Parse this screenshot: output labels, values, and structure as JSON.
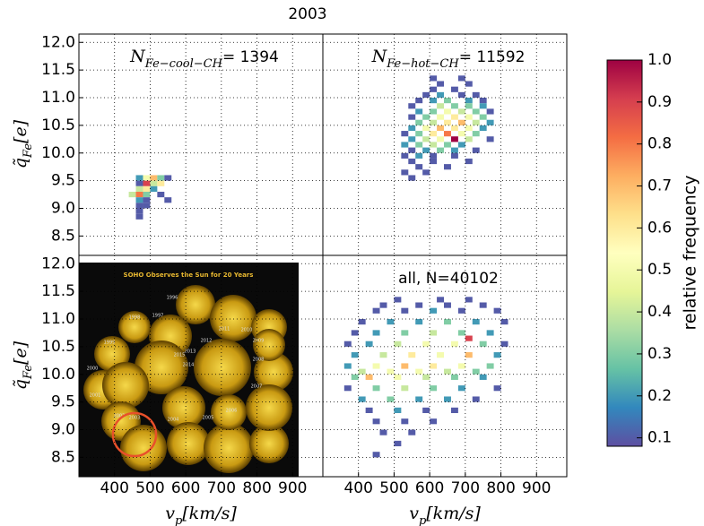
{
  "chart_data": {
    "type": "heatmap",
    "title": "2003",
    "xlabel": {
      "symbol": "v",
      "subscript": "p",
      "suffix": "[km/s]"
    },
    "ylabel": {
      "symbol": "q̃",
      "subscript": "Fe",
      "suffix": "[e]"
    },
    "xlim": [
      300,
      985
    ],
    "xticks": [
      400,
      500,
      600,
      700,
      800,
      900
    ],
    "ylim": [
      8.15,
      12.15
    ],
    "yticks": [
      {
        "value": 8.5,
        "label": "8.5"
      },
      {
        "value": 9,
        "label": "9.0"
      },
      {
        "value": 9.5,
        "label": "9.5"
      },
      {
        "value": 10,
        "label": "10.0"
      },
      {
        "value": 10.5,
        "label": "10.5"
      },
      {
        "value": 11,
        "label": "11.0"
      },
      {
        "value": 11.5,
        "label": "11.5"
      },
      {
        "value": 12,
        "label": "12.0"
      }
    ],
    "grid": true,
    "bin_size": [
      20,
      0.1
    ],
    "colormap": [
      "#5e4fa2",
      "#3288bd",
      "#66c2a5",
      "#abdda4",
      "#e6f598",
      "#ffffbf",
      "#fee08b",
      "#fdae61",
      "#f46d43",
      "#d53e4f",
      "#9e0142"
    ],
    "colorbar": {
      "label": "relative frequency",
      "lim": [
        0.08,
        1.0
      ],
      "ticks": [
        0.1,
        0.2,
        0.3,
        0.4,
        0.5,
        0.6,
        0.7,
        0.8,
        0.9,
        {
          "value": 1,
          "label": "1.0"
        }
      ]
    },
    "panels": [
      {
        "annotation": {
          "symbol": "N",
          "subscript": "Fe−cool−CH",
          "text": "= 1394"
        },
        "rows": [
          {
            "y": 9.5,
            "x": [
              460,
              480,
              500,
              520,
              540
            ],
            "values": [
              0.2,
              0.5,
              0.7,
              0.3,
              0.1
            ]
          },
          {
            "y": 9.4,
            "x": [
              460,
              480,
              500,
              520
            ],
            "values": [
              0.1,
              0.9,
              0.4,
              0.6
            ]
          },
          {
            "y": 9.3,
            "x": [
              460,
              480,
              500
            ],
            "values": [
              0.4,
              0.6,
              0.2
            ]
          },
          {
            "y": 9.2,
            "x": [
              440,
              460,
              480,
              520
            ],
            "values": [
              0.4,
              0.8,
              0.3,
              0.1
            ]
          },
          {
            "y": 9.1,
            "x": [
              460,
              480,
              540
            ],
            "values": [
              0.2,
              0.1,
              0.1
            ]
          },
          {
            "y": 9.0,
            "x": [
              460,
              480
            ],
            "values": [
              0.1,
              0.1
            ]
          },
          {
            "y": 8.9,
            "x": [
              460
            ],
            "values": [
              0.1
            ]
          },
          {
            "y": 8.8,
            "x": [
              460
            ],
            "values": [
              0.1
            ]
          }
        ]
      },
      {
        "annotation": {
          "symbol": "N",
          "subscript": "Fe−hot−CH",
          "text": "= 11592"
        },
        "rows": [
          {
            "y": 11.3,
            "x": [
              600,
              680
            ],
            "values": [
              0.1,
              0.1
            ]
          },
          {
            "y": 11.2,
            "x": [
              620,
              700
            ],
            "values": [
              0.1,
              0.1
            ]
          },
          {
            "y": 11.1,
            "x": [
              600,
              660
            ],
            "values": [
              0.1,
              0.1
            ]
          },
          {
            "y": 11.0,
            "x": [
              580,
              620,
              680,
              720
            ],
            "values": [
              0.1,
              0.2,
              0.1,
              0.1
            ]
          },
          {
            "y": 10.9,
            "x": [
              560,
              600,
              640,
              700,
              740
            ],
            "values": [
              0.1,
              0.2,
              0.3,
              0.2,
              0.1
            ]
          },
          {
            "y": 10.8,
            "x": [
              540,
              620,
              660,
              700,
              740
            ],
            "values": [
              0.1,
              0.4,
              0.3,
              0.3,
              0.2
            ]
          },
          {
            "y": 10.7,
            "x": [
              560,
              600,
              640,
              680,
              720,
              760
            ],
            "values": [
              0.2,
              0.3,
              0.5,
              0.4,
              0.3,
              0.1
            ]
          },
          {
            "y": 10.6,
            "x": [
              540,
              580,
              620,
              660,
              700,
              740
            ],
            "values": [
              0.1,
              0.3,
              0.5,
              0.6,
              0.5,
              0.3
            ]
          },
          {
            "y": 10.5,
            "x": [
              560,
              600,
              640,
              680,
              720,
              760
            ],
            "values": [
              0.3,
              0.4,
              0.6,
              0.7,
              0.4,
              0.2
            ]
          },
          {
            "y": 10.4,
            "x": [
              540,
              580,
              620,
              660,
              700,
              740
            ],
            "values": [
              0.2,
              0.5,
              0.7,
              0.6,
              0.5,
              0.2
            ]
          },
          {
            "y": 10.3,
            "x": [
              520,
              560,
              600,
              640,
              680,
              720
            ],
            "values": [
              0.1,
              0.3,
              0.6,
              0.8,
              0.5,
              0.3
            ]
          },
          {
            "y": 10.2,
            "x": [
              540,
              580,
              620,
              660,
              700,
              760
            ],
            "values": [
              0.2,
              0.4,
              0.5,
              1.0,
              0.4,
              0.1
            ]
          },
          {
            "y": 10.1,
            "x": [
              520,
              560,
              600,
              640,
              680
            ],
            "values": [
              0.2,
              0.3,
              0.4,
              0.3,
              0.2
            ]
          },
          {
            "y": 10.0,
            "x": [
              540,
              580,
              620,
              660,
              720
            ],
            "values": [
              0.1,
              0.2,
              0.3,
              0.2,
              0.1
            ]
          },
          {
            "y": 9.9,
            "x": [
              520,
              560,
              600,
              660
            ],
            "values": [
              0.1,
              0.2,
              0.1,
              0.1
            ]
          },
          {
            "y": 9.8,
            "x": [
              540,
              600,
              700
            ],
            "values": [
              0.1,
              0.1,
              0.1
            ]
          },
          {
            "y": 9.7,
            "x": [
              560,
              640
            ],
            "values": [
              0.1,
              0.1
            ]
          },
          {
            "y": 9.6,
            "x": [
              520,
              580
            ],
            "values": [
              0.1,
              0.1
            ]
          },
          {
            "y": 9.5,
            "x": [
              540
            ],
            "values": [
              0.1
            ]
          }
        ]
      },
      {
        "image_title": "SOHO Observes the Sun for 20 Years",
        "image_years": [
          "1996",
          "1997",
          "1998",
          "1999",
          "2000",
          "2001",
          "2002",
          "2003",
          "2004",
          "2005",
          "2006",
          "2007",
          "2008",
          "2009",
          "2010",
          "2011",
          "2012",
          "2013",
          "2014",
          "2015"
        ]
      },
      {
        "annotation": {
          "text": "all, N=40102"
        },
        "rows": [
          {
            "y": 11.3,
            "x": [
              500,
              620,
              700
            ],
            "values": [
              0.1,
              0.1,
              0.1
            ]
          },
          {
            "y": 11.2,
            "x": [
              460,
              560,
              640,
              740
            ],
            "values": [
              0.1,
              0.1,
              0.1,
              0.1
            ]
          },
          {
            "y": 11.1,
            "x": [
              440,
              520,
              600,
              680,
              780
            ],
            "values": [
              0.1,
              0.1,
              0.2,
              0.1,
              0.1
            ]
          },
          {
            "y": 10.9,
            "x": [
              400,
              480,
              560,
              640,
              720,
              800
            ],
            "values": [
              0.1,
              0.2,
              0.2,
              0.3,
              0.2,
              0.1
            ]
          },
          {
            "y": 10.7,
            "x": [
              380,
              440,
              520,
              600,
              680,
              760
            ],
            "values": [
              0.1,
              0.2,
              0.3,
              0.4,
              0.3,
              0.2
            ]
          },
          {
            "y": 10.6,
            "x": [
              700
            ],
            "values": [
              0.9
            ]
          },
          {
            "y": 10.5,
            "x": [
              360,
              420,
              500,
              580,
              660,
              740,
              800
            ],
            "values": [
              0.1,
              0.2,
              0.4,
              0.5,
              0.5,
              0.3,
              0.1
            ]
          },
          {
            "y": 10.3,
            "x": [
              380,
              460,
              540,
              620,
              700,
              780
            ],
            "values": [
              0.2,
              0.4,
              0.6,
              0.5,
              0.7,
              0.2
            ]
          },
          {
            "y": 10.1,
            "x": [
              360,
              440,
              520,
              600,
              680,
              760
            ],
            "values": [
              0.2,
              0.5,
              0.7,
              0.6,
              0.5,
              0.3
            ]
          },
          {
            "y": 10.0,
            "x": [
              400,
              480,
              560,
              640,
              720
            ],
            "values": [
              0.4,
              0.5,
              0.5,
              0.4,
              0.3
            ]
          },
          {
            "y": 9.9,
            "x": [
              380,
              420,
              500,
              580,
              660,
              740
            ],
            "values": [
              0.3,
              0.7,
              0.5,
              0.4,
              0.3,
              0.2
            ]
          },
          {
            "y": 9.7,
            "x": [
              360,
              440,
              520,
              600,
              680,
              780
            ],
            "values": [
              0.1,
              0.3,
              0.4,
              0.3,
              0.2,
              0.1
            ]
          },
          {
            "y": 9.5,
            "x": [
              400,
              480,
              560,
              640,
              720
            ],
            "values": [
              0.2,
              0.3,
              0.2,
              0.2,
              0.1
            ]
          },
          {
            "y": 9.3,
            "x": [
              420,
              500,
              580,
              660
            ],
            "values": [
              0.1,
              0.2,
              0.1,
              0.1
            ]
          },
          {
            "y": 9.1,
            "x": [
              440,
              520,
              600
            ],
            "values": [
              0.1,
              0.1,
              0.1
            ]
          },
          {
            "y": 8.9,
            "x": [
              460,
              540
            ],
            "values": [
              0.1,
              0.1
            ]
          },
          {
            "y": 8.7,
            "x": [
              500
            ],
            "values": [
              0.1
            ]
          },
          {
            "y": 8.5,
            "x": [
              440
            ],
            "values": [
              0.1
            ]
          }
        ]
      }
    ]
  }
}
